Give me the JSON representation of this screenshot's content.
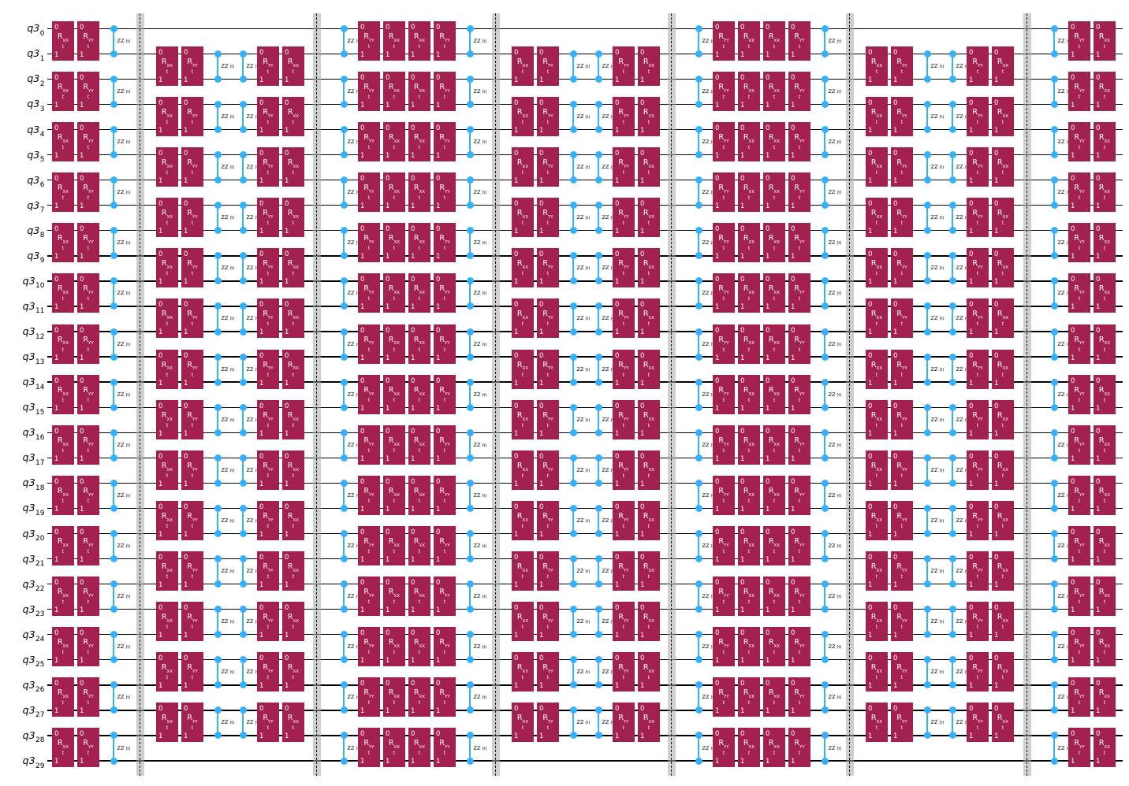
{
  "figure": {
    "kind": "quantum-circuit-diagram",
    "background": "#ffffff"
  },
  "register": {
    "prefix": "q3",
    "size": 30,
    "indices": [
      "0",
      "1",
      "2",
      "3",
      "4",
      "5",
      "6",
      "7",
      "8",
      "9",
      "10",
      "11",
      "12",
      "13",
      "14",
      "15",
      "16",
      "17",
      "18",
      "19",
      "20",
      "21",
      "22",
      "23",
      "24",
      "25",
      "26",
      "27",
      "28",
      "29"
    ]
  },
  "gate_defs": {
    "rxx": {
      "kind": "box",
      "port_top": "0",
      "port_bottom": "1",
      "label_main": "R",
      "label_sub": "XX",
      "param": "t",
      "fill": "#A3214F",
      "text_color": "#ffffff"
    },
    "ryy": {
      "kind": "box",
      "port_top": "0",
      "port_bottom": "1",
      "label_main": "R",
      "label_sub": "YY",
      "param": "t",
      "fill": "#A3214F",
      "text_color": "#ffffff"
    },
    "rzz": {
      "kind": "symmetric",
      "label": "ZZ",
      "param": "(t)",
      "color": "#33B1FF",
      "label_color": "#000000"
    }
  },
  "sections": [
    {
      "name": "layer-1",
      "pairs": "even",
      "columns": [
        "rxx",
        "ryy",
        "rzz"
      ],
      "barrier_after": true
    },
    {
      "name": "layer-2",
      "pairs": "odd",
      "columns": [
        "rxx",
        "ryy",
        "rzz",
        "rzz",
        "ryy",
        "rxx"
      ],
      "barrier_after": true
    },
    {
      "name": "layer-3",
      "pairs": "even",
      "columns": [
        "rzz",
        "ryy",
        "rxx",
        "rxx",
        "ryy",
        "rzz"
      ],
      "barrier_after": true
    },
    {
      "name": "layer-4",
      "pairs": "odd",
      "columns": [
        "rxx",
        "ryy",
        "rzz",
        "rzz",
        "ryy",
        "rxx"
      ],
      "barrier_after": true
    },
    {
      "name": "layer-5",
      "pairs": "even",
      "columns": [
        "rzz",
        "ryy",
        "rxx",
        "rxx",
        "ryy",
        "rzz"
      ],
      "barrier_after": true
    },
    {
      "name": "layer-6",
      "pairs": "odd",
      "columns": [
        "rxx",
        "ryy",
        "rzz",
        "rzz",
        "ryy",
        "rxx"
      ],
      "barrier_after": true
    },
    {
      "name": "layer-7",
      "pairs": "even",
      "columns": [
        "rzz",
        "ryy",
        "rxx"
      ],
      "barrier_after": false
    }
  ],
  "barrier_count": 6,
  "colors": {
    "wire": "#000000",
    "barrier_fill": "rgba(170,170,170,0.55)",
    "barrier_dash": "#1a1a1a",
    "gate_fill": "#A3214F",
    "rzz_blue": "#33B1FF"
  }
}
